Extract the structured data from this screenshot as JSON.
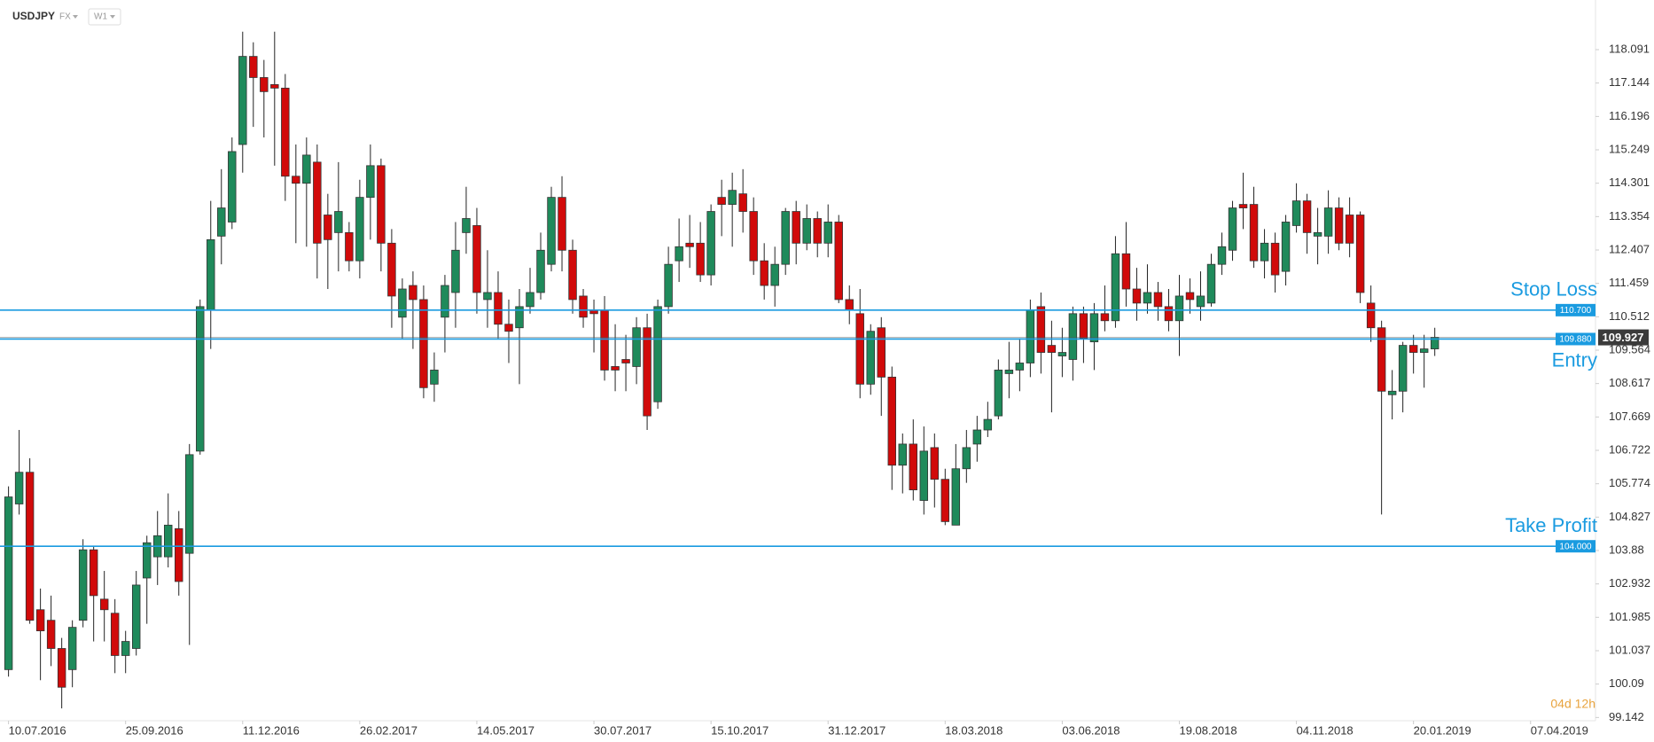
{
  "chart_data": {
    "type": "candlestick",
    "title": "USDJPY",
    "market": "FX",
    "timeframe": "W1",
    "countdown": "04d 12h",
    "up_color": "#1f8a5b",
    "down_color": "#d10a0a",
    "level_color": "#1a9be0",
    "xlim": [
      -0.8,
      149.1
    ],
    "ylim": [
      99.05,
      119.5
    ],
    "xticks": [
      {
        "value": 0,
        "label": "10.07.2016"
      },
      {
        "value": 11,
        "label": "25.09.2016"
      },
      {
        "value": 22,
        "label": "11.12.2016"
      },
      {
        "value": 33,
        "label": "26.02.2017"
      },
      {
        "value": 44,
        "label": "14.05.2017"
      },
      {
        "value": 55,
        "label": "30.07.2017"
      },
      {
        "value": 66,
        "label": "15.10.2017"
      },
      {
        "value": 77,
        "label": "31.12.2017"
      },
      {
        "value": 88,
        "label": "18.03.2018"
      },
      {
        "value": 99,
        "label": "03.06.2018"
      },
      {
        "value": 110,
        "label": "19.08.2018"
      },
      {
        "value": 121,
        "label": "04.11.2018"
      },
      {
        "value": 132,
        "label": "20.01.2019"
      },
      {
        "value": 143,
        "label": "07.04.2019"
      }
    ],
    "yticks": [
      118.091,
      117.144,
      116.196,
      115.249,
      114.301,
      113.354,
      112.407,
      111.459,
      110.512,
      109.564,
      108.617,
      107.669,
      106.722,
      105.774,
      104.827,
      103.88,
      102.932,
      101.985,
      101.037,
      100.09,
      99.142
    ],
    "levels": [
      {
        "name": "Stop Loss",
        "value": 110.7,
        "value_label": "110.700"
      },
      {
        "name": "Entry",
        "value": 109.88,
        "value_label": "109.880"
      },
      {
        "name": "Take Profit",
        "value": 104,
        "value_label": "104.000"
      }
    ],
    "open": [
      100.5,
      105.2,
      106.1,
      102.2,
      101.9,
      101.1,
      100.5,
      101.9,
      103.9,
      102.5,
      102.1,
      100.9,
      101.1,
      103.1,
      103.7,
      103.7,
      104.5,
      103.8,
      106.7,
      110.7,
      112.8,
      113.2,
      115.4,
      117.9,
      117.3,
      117.1,
      117.0,
      114.5,
      114.3,
      114.9,
      113.4,
      112.9,
      112.9,
      112.1,
      113.9,
      114.8,
      112.6,
      110.5,
      111.4,
      111.0,
      108.6,
      110.5,
      111.2,
      112.9,
      113.1,
      111.0,
      111.2,
      110.3,
      110.2,
      110.8,
      111.2,
      112.0,
      113.9,
      112.4,
      111.1,
      110.7,
      110.7,
      109.1,
      109.3,
      109.1,
      110.2,
      108.1,
      110.8,
      112.1,
      112.6,
      112.6,
      111.7,
      113.9,
      113.7,
      114.0,
      113.5,
      112.1,
      111.4,
      112.0,
      113.5,
      112.6,
      113.3,
      112.6,
      113.2,
      111.0,
      110.6,
      108.6,
      110.2,
      108.8,
      106.3,
      106.9,
      105.3,
      106.8,
      105.9,
      104.6,
      106.2,
      106.9,
      107.3,
      107.7,
      108.9,
      109.0,
      109.2,
      110.8,
      109.7,
      109.4,
      109.3,
      110.6,
      109.8,
      110.6,
      110.4,
      112.3,
      111.3,
      110.9,
      111.2,
      110.8,
      110.4,
      111.2,
      110.8,
      110.9,
      112.0,
      112.4,
      113.7,
      113.7,
      112.1,
      112.6,
      111.8,
      113.1,
      113.8,
      112.8,
      112.8,
      113.6,
      113.4,
      113.4,
      110.9,
      110.2,
      108.3,
      108.4,
      109.7,
      109.5,
      109.6
    ],
    "high": [
      105.7,
      107.3,
      106.5,
      102.8,
      102.6,
      101.4,
      101.9,
      104.2,
      104.0,
      103.3,
      102.5,
      101.6,
      103.3,
      104.3,
      105.0,
      105.5,
      105.0,
      106.9,
      111.0,
      113.8,
      114.7,
      115.6,
      118.6,
      118.3,
      117.8,
      118.6,
      117.4,
      115.4,
      115.6,
      115.4,
      114.0,
      114.9,
      113.2,
      114.4,
      115.4,
      115.0,
      113.0,
      111.6,
      111.8,
      111.4,
      109.5,
      111.7,
      113.2,
      114.2,
      113.6,
      112.4,
      111.8,
      111.0,
      111.3,
      111.9,
      112.9,
      114.2,
      114.5,
      112.7,
      111.3,
      111.0,
      111.1,
      110.3,
      110.0,
      110.5,
      110.6,
      111.0,
      112.5,
      113.3,
      113.4,
      113.2,
      113.7,
      114.4,
      114.6,
      114.7,
      113.9,
      112.6,
      112.5,
      113.6,
      113.8,
      113.7,
      113.5,
      113.7,
      113.4,
      111.4,
      111.3,
      110.3,
      110.5,
      109.1,
      107.2,
      107.6,
      107.4,
      107.2,
      106.2,
      106.9,
      107.3,
      107.7,
      108.1,
      109.3,
      109.8,
      109.9,
      111.0,
      111.2,
      110.4,
      110.2,
      110.8,
      110.8,
      110.9,
      111.4,
      112.8,
      113.2,
      111.9,
      112.0,
      111.5,
      111.3,
      111.7,
      111.6,
      111.8,
      112.3,
      112.9,
      113.8,
      114.6,
      114.2,
      113.0,
      112.9,
      113.4,
      114.3,
      114.0,
      113.6,
      114.1,
      113.9,
      113.9,
      113.5,
      111.4,
      110.4,
      109.0,
      109.8,
      110.0,
      110.0,
      110.2
    ],
    "low": [
      100.3,
      104.9,
      101.8,
      100.2,
      100.6,
      99.4,
      100.0,
      101.7,
      101.3,
      101.3,
      100.4,
      100.4,
      100.9,
      101.8,
      102.9,
      103.4,
      102.6,
      101.2,
      106.6,
      109.6,
      112.0,
      113.0,
      114.6,
      115.9,
      115.6,
      114.8,
      113.8,
      112.6,
      112.5,
      111.6,
      111.3,
      111.8,
      111.8,
      111.6,
      112.7,
      111.8,
      110.2,
      109.9,
      109.6,
      108.2,
      108.1,
      109.5,
      110.2,
      112.3,
      110.6,
      110.2,
      109.9,
      109.2,
      108.6,
      110.6,
      111.0,
      111.8,
      111.8,
      110.6,
      110.2,
      109.5,
      108.7,
      108.4,
      108.4,
      108.6,
      107.3,
      107.9,
      110.6,
      111.5,
      111.9,
      111.5,
      111.4,
      112.8,
      112.5,
      112.9,
      111.7,
      111.0,
      110.8,
      111.7,
      112.0,
      112.4,
      112.2,
      112.2,
      110.9,
      110.3,
      108.2,
      108.3,
      107.7,
      105.6,
      105.5,
      105.3,
      104.9,
      105.1,
      104.6,
      104.6,
      105.8,
      106.4,
      107.1,
      107.6,
      108.2,
      108.4,
      108.8,
      108.9,
      107.8,
      108.8,
      108.7,
      109.2,
      109.0,
      110.1,
      110.2,
      110.8,
      110.4,
      110.6,
      110.4,
      110.1,
      109.4,
      110.6,
      110.4,
      110.8,
      111.7,
      112.1,
      113.0,
      111.9,
      111.6,
      111.2,
      111.4,
      112.9,
      112.3,
      112.0,
      112.3,
      112.4,
      112.2,
      110.9,
      109.8,
      104.9,
      107.6,
      107.8,
      108.9,
      108.5,
      109.4
    ],
    "close": [
      105.4,
      106.1,
      101.9,
      101.6,
      101.1,
      100.0,
      101.7,
      103.9,
      102.6,
      102.2,
      100.9,
      101.3,
      102.9,
      104.1,
      104.3,
      104.6,
      103.0,
      106.6,
      110.8,
      112.7,
      113.6,
      115.2,
      117.9,
      117.3,
      116.9,
      117.0,
      114.5,
      114.3,
      115.1,
      112.6,
      112.7,
      113.5,
      112.1,
      113.9,
      114.8,
      112.6,
      111.1,
      111.3,
      111.0,
      108.5,
      109.0,
      111.4,
      112.4,
      113.3,
      111.2,
      111.2,
      110.3,
      110.1,
      110.8,
      111.2,
      112.4,
      113.9,
      112.4,
      111.0,
      110.5,
      110.6,
      109.0,
      109.0,
      109.2,
      110.2,
      107.7,
      110.8,
      112.0,
      112.5,
      112.5,
      111.7,
      113.5,
      113.7,
      114.1,
      113.5,
      112.1,
      111.4,
      112.0,
      113.5,
      112.6,
      113.3,
      112.6,
      113.2,
      111.0,
      110.7,
      108.6,
      110.1,
      108.8,
      106.3,
      106.9,
      105.6,
      106.7,
      105.9,
      104.7,
      106.2,
      106.8,
      107.3,
      107.6,
      109.0,
      109.0,
      109.2,
      110.7,
      109.5,
      109.5,
      109.5,
      110.6,
      109.9,
      110.6,
      110.4,
      112.3,
      111.3,
      110.9,
      111.2,
      110.8,
      110.4,
      111.1,
      111.0,
      111.1,
      112.0,
      112.5,
      113.6,
      113.6,
      112.1,
      112.6,
      111.7,
      113.2,
      113.8,
      112.9,
      112.9,
      113.6,
      112.6,
      112.6,
      111.2,
      110.2,
      108.4,
      108.4,
      109.7,
      109.5,
      109.6,
      109.927
    ]
  }
}
